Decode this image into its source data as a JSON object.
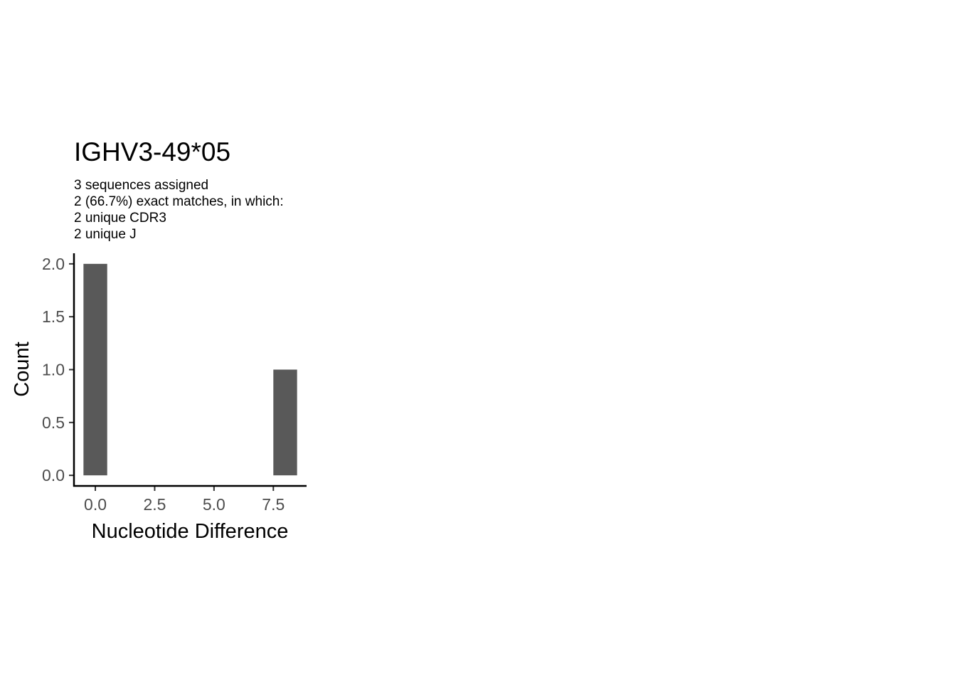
{
  "chart_data": {
    "type": "bar",
    "title": "IGHV3-49*05",
    "subtitle_lines": [
      "3 sequences assigned",
      "2 (66.7%) exact matches, in which:",
      "2 unique CDR3",
      "2 unique J"
    ],
    "xlabel": "Nucleotide Difference",
    "ylabel": "Count",
    "x": [
      0,
      8
    ],
    "values": [
      2,
      1
    ],
    "bar_width": 1,
    "xlim": [
      -0.9,
      8.9
    ],
    "ylim": [
      -0.1,
      2.1
    ],
    "x_ticks": [
      0,
      2.5,
      5,
      7.5
    ],
    "x_tick_labels": [
      "0.0",
      "2.5",
      "5.0",
      "7.5"
    ],
    "y_ticks": [
      0,
      0.5,
      1,
      1.5,
      2
    ],
    "y_tick_labels": [
      "0.0",
      "0.5",
      "1.0",
      "1.5",
      "2.0"
    ],
    "bar_color": "#595959",
    "grid": false,
    "legend": "none"
  }
}
